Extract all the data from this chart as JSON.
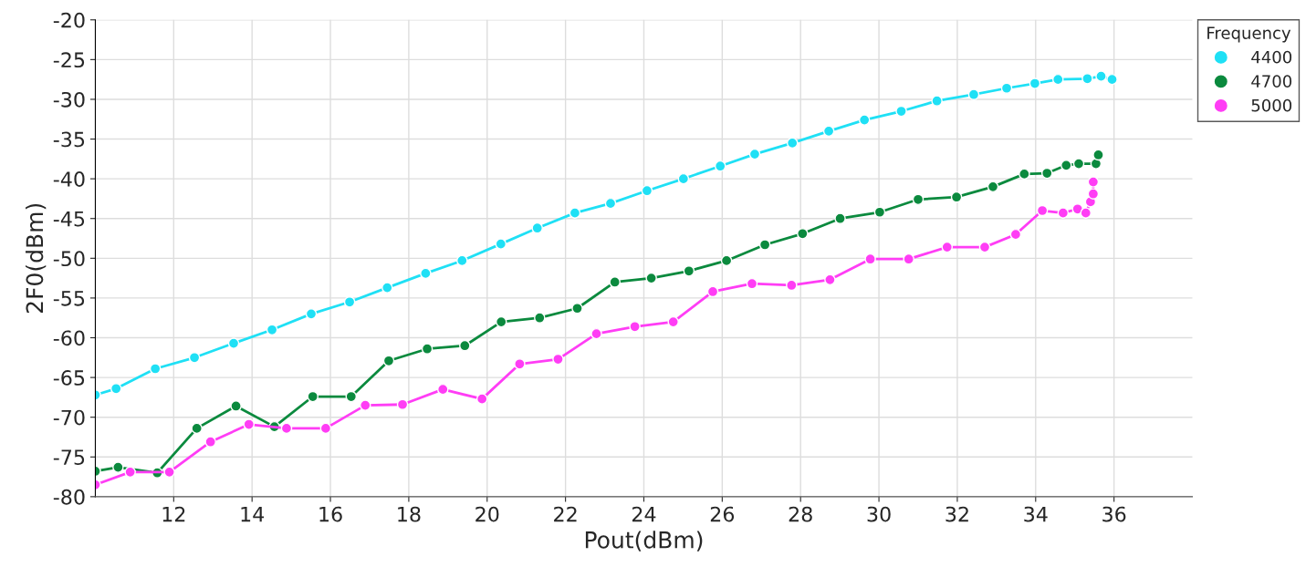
{
  "chart_data": {
    "type": "line",
    "xlabel": "Pout(dBm)",
    "ylabel": "2F0(dBm)",
    "legend_title": "Frequency",
    "legend": "top right",
    "grid": true,
    "marker": "circle",
    "line_style": "solid",
    "xlim": [
      10,
      38
    ],
    "xticks": [
      12,
      14,
      16,
      18,
      20,
      22,
      24,
      26,
      28,
      30,
      32,
      34,
      36
    ],
    "ylim": [
      -80,
      -20
    ],
    "yticks": [
      -80,
      -75,
      -70,
      -65,
      -60,
      -55,
      -50,
      -45,
      -40,
      -35,
      -30,
      -25,
      -20
    ],
    "series": [
      {
        "name": "4400",
        "color": "#1fe0f5",
        "x": [
          10,
          10.53,
          11.53,
          12.53,
          13.53,
          14.51,
          15.51,
          16.49,
          17.45,
          18.43,
          19.36,
          20.35,
          21.28,
          22.24,
          23.15,
          24.08,
          25.01,
          25.95,
          26.83,
          27.79,
          28.72,
          29.63,
          30.57,
          31.48,
          32.42,
          33.26,
          33.98,
          34.57,
          35.32,
          35.67,
          35.95
        ],
        "values": [
          -67.2,
          -66.4,
          -63.9,
          -62.5,
          -60.7,
          -59.0,
          -57.0,
          -55.5,
          -53.7,
          -51.9,
          -50.3,
          -48.2,
          -46.2,
          -44.3,
          -43.1,
          -41.5,
          -40.0,
          -38.4,
          -36.9,
          -35.5,
          -34.0,
          -32.6,
          -31.5,
          -30.2,
          -29.4,
          -28.6,
          -28.0,
          -27.5,
          -27.4,
          -27.1,
          -27.5
        ]
      },
      {
        "name": "4700",
        "color": "#0b8a3e",
        "x": [
          10,
          10.58,
          11.58,
          12.59,
          13.59,
          14.57,
          15.55,
          16.53,
          17.49,
          18.47,
          19.43,
          20.36,
          21.34,
          22.3,
          23.26,
          24.19,
          25.15,
          26.11,
          27.09,
          28.05,
          29.01,
          30.02,
          31.0,
          31.98,
          32.91,
          33.71,
          34.29,
          34.78,
          35.1,
          35.54,
          35.6
        ],
        "values": [
          -76.8,
          -76.3,
          -77.0,
          -71.4,
          -68.6,
          -71.2,
          -67.4,
          -67.4,
          -62.9,
          -61.4,
          -61.0,
          -58.0,
          -57.5,
          -56.3,
          -53.0,
          -52.5,
          -51.6,
          -50.3,
          -48.3,
          -46.9,
          -45.0,
          -44.2,
          -42.6,
          -42.3,
          -41.0,
          -39.4,
          -39.3,
          -38.3,
          -38.1,
          -38.1,
          -37.0
        ]
      },
      {
        "name": "5000",
        "color": "#ff3df5",
        "x": [
          10,
          10.89,
          11.89,
          12.94,
          13.92,
          14.88,
          15.88,
          16.89,
          17.84,
          18.87,
          19.87,
          20.83,
          21.81,
          22.79,
          23.77,
          24.75,
          25.76,
          26.76,
          27.77,
          28.75,
          29.78,
          30.76,
          31.74,
          32.7,
          33.49,
          34.17,
          34.7,
          35.07,
          35.28,
          35.4,
          35.47,
          35.47
        ],
        "values": [
          -78.5,
          -76.9,
          -76.9,
          -73.1,
          -70.9,
          -71.4,
          -71.4,
          -68.5,
          -68.4,
          -66.5,
          -67.7,
          -63.3,
          -62.7,
          -59.5,
          -58.6,
          -58.0,
          -54.2,
          -53.2,
          -53.4,
          -52.7,
          -50.1,
          -50.1,
          -48.6,
          -48.6,
          -47.0,
          -44.0,
          -44.3,
          -43.8,
          -44.3,
          -42.9,
          -41.9,
          -40.4
        ]
      }
    ]
  }
}
